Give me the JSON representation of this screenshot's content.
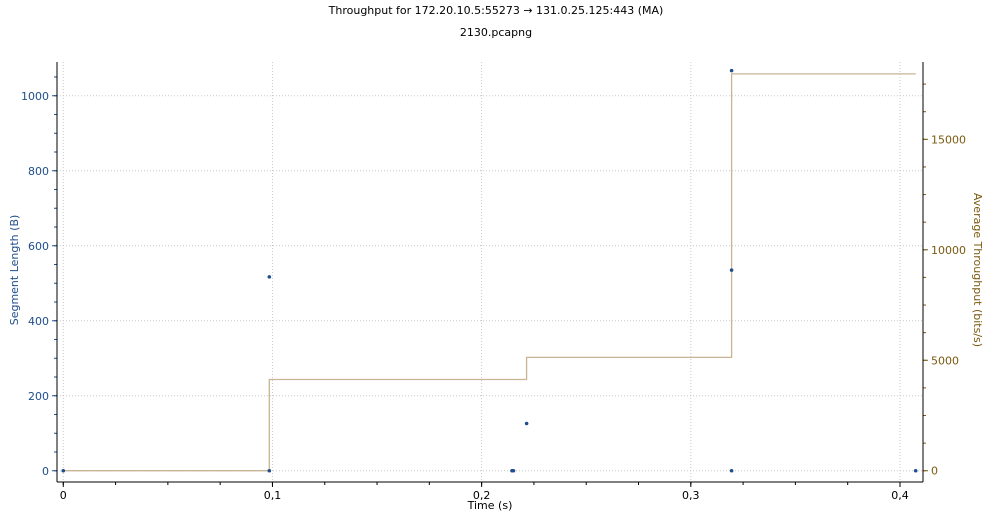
{
  "chart_data": {
    "type": "scatter",
    "title": "Throughput for 172.20.10.5:55273 → 131.0.25.125:443 (MA)",
    "subtitle": "2130.pcapng",
    "xlabel": "Time (s)",
    "ylabel_left": "Segment Length (B)",
    "ylabel_right": "Average Throughput (bits/s)",
    "xlim": [
      -0.003,
      0.411
    ],
    "ylim_left": [
      -30,
      1090
    ],
    "ylim_right": [
      -510,
      18500
    ],
    "x_ticks": [
      0,
      0.1,
      0.2,
      0.3,
      0.4
    ],
    "x_tick_labels": [
      "0",
      "0,1",
      "0,2",
      "0,3",
      "0,4"
    ],
    "y_left_ticks": [
      0,
      200,
      400,
      600,
      800,
      1000
    ],
    "y_left_tick_labels": [
      "0",
      "200",
      "400",
      "600",
      "800",
      "1000"
    ],
    "y_right_ticks": [
      0,
      5000,
      10000,
      15000
    ],
    "y_right_tick_labels": [
      "0",
      "5000",
      "10000",
      "15000"
    ],
    "grid": true,
    "colors": {
      "left_axis": "#1f4e8c",
      "right_axis": "#7a5a10",
      "segments": "#1f4e8c",
      "throughput": "#c8b492",
      "grid": "#c8c8c8"
    },
    "series": [
      {
        "type": "scatter",
        "axis": "left",
        "points": [
          {
            "x": 0.0,
            "y": 0
          },
          {
            "x": 0.0985,
            "y": 517
          },
          {
            "x": 0.0985,
            "y": 0
          },
          {
            "x": 0.2145,
            "y": 0
          },
          {
            "x": 0.2152,
            "y": 0
          },
          {
            "x": 0.2215,
            "y": 126
          },
          {
            "x": 0.3195,
            "y": 1067
          },
          {
            "x": 0.3195,
            "y": 535
          },
          {
            "x": 0.3195,
            "y": 0
          },
          {
            "x": 0.4075,
            "y": 0
          }
        ]
      },
      {
        "type": "step",
        "axis": "right",
        "points": [
          {
            "x": 0.0,
            "y": 0
          },
          {
            "x": 0.0985,
            "y": 0
          },
          {
            "x": 0.0985,
            "y": 4130
          },
          {
            "x": 0.2215,
            "y": 4130
          },
          {
            "x": 0.2215,
            "y": 5130
          },
          {
            "x": 0.3195,
            "y": 5130
          },
          {
            "x": 0.3195,
            "y": 17960
          },
          {
            "x": 0.4075,
            "y": 17960
          }
        ]
      }
    ]
  }
}
